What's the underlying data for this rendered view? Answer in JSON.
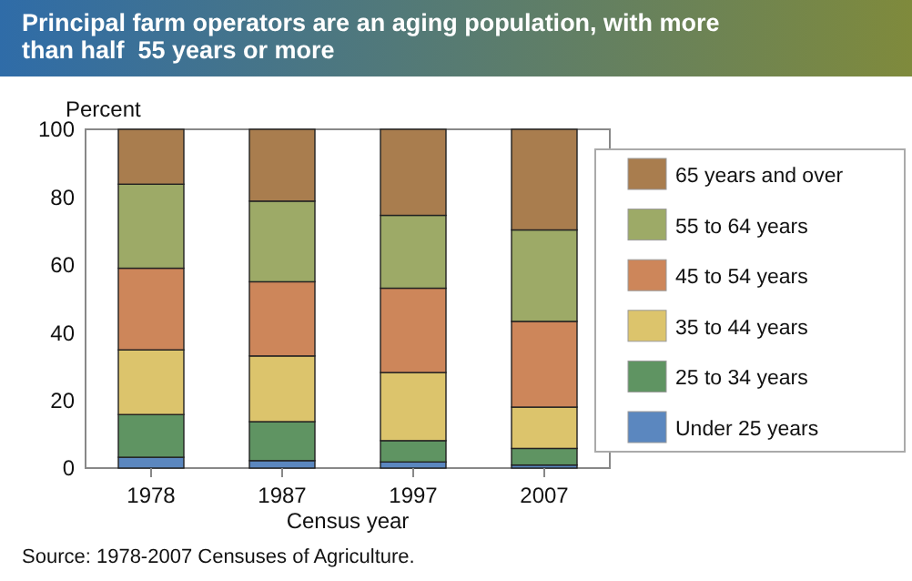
{
  "chart_data": {
    "type": "bar",
    "stacked": true,
    "title": "Principal farm operators are an aging population, with more than half  55 years or more",
    "xlabel": "Census year",
    "ylabel": "Percent",
    "categories": [
      "1978",
      "1987",
      "1997",
      "2007"
    ],
    "series": [
      {
        "name": "Under 25 years",
        "color": "#5b87bf",
        "values": [
          3.2,
          2.2,
          1.8,
          0.9
        ]
      },
      {
        "name": "25 to 34 years",
        "color": "#5f9462",
        "values": [
          12.6,
          11.5,
          6.3,
          4.9
        ]
      },
      {
        "name": "35 to 44 years",
        "color": "#dcc46c",
        "values": [
          19.1,
          19.4,
          20.1,
          12.2
        ]
      },
      {
        "name": "45 to 54 years",
        "color": "#cd865a",
        "values": [
          24.1,
          21.9,
          24.9,
          25.3
        ]
      },
      {
        "name": "55 to 64 years",
        "color": "#9daa67",
        "values": [
          24.8,
          23.8,
          21.5,
          27
        ]
      },
      {
        "name": "65 years and over",
        "color": "#a97d4e",
        "values": [
          16.2,
          21.2,
          25.4,
          29.7
        ]
      }
    ],
    "ylim": [
      0,
      100
    ],
    "yticks": [
      0,
      20,
      40,
      60,
      80,
      100
    ],
    "legend": "right",
    "annotations": [
      "Source:  1978-2007 Censuses of Agriculture."
    ]
  }
}
